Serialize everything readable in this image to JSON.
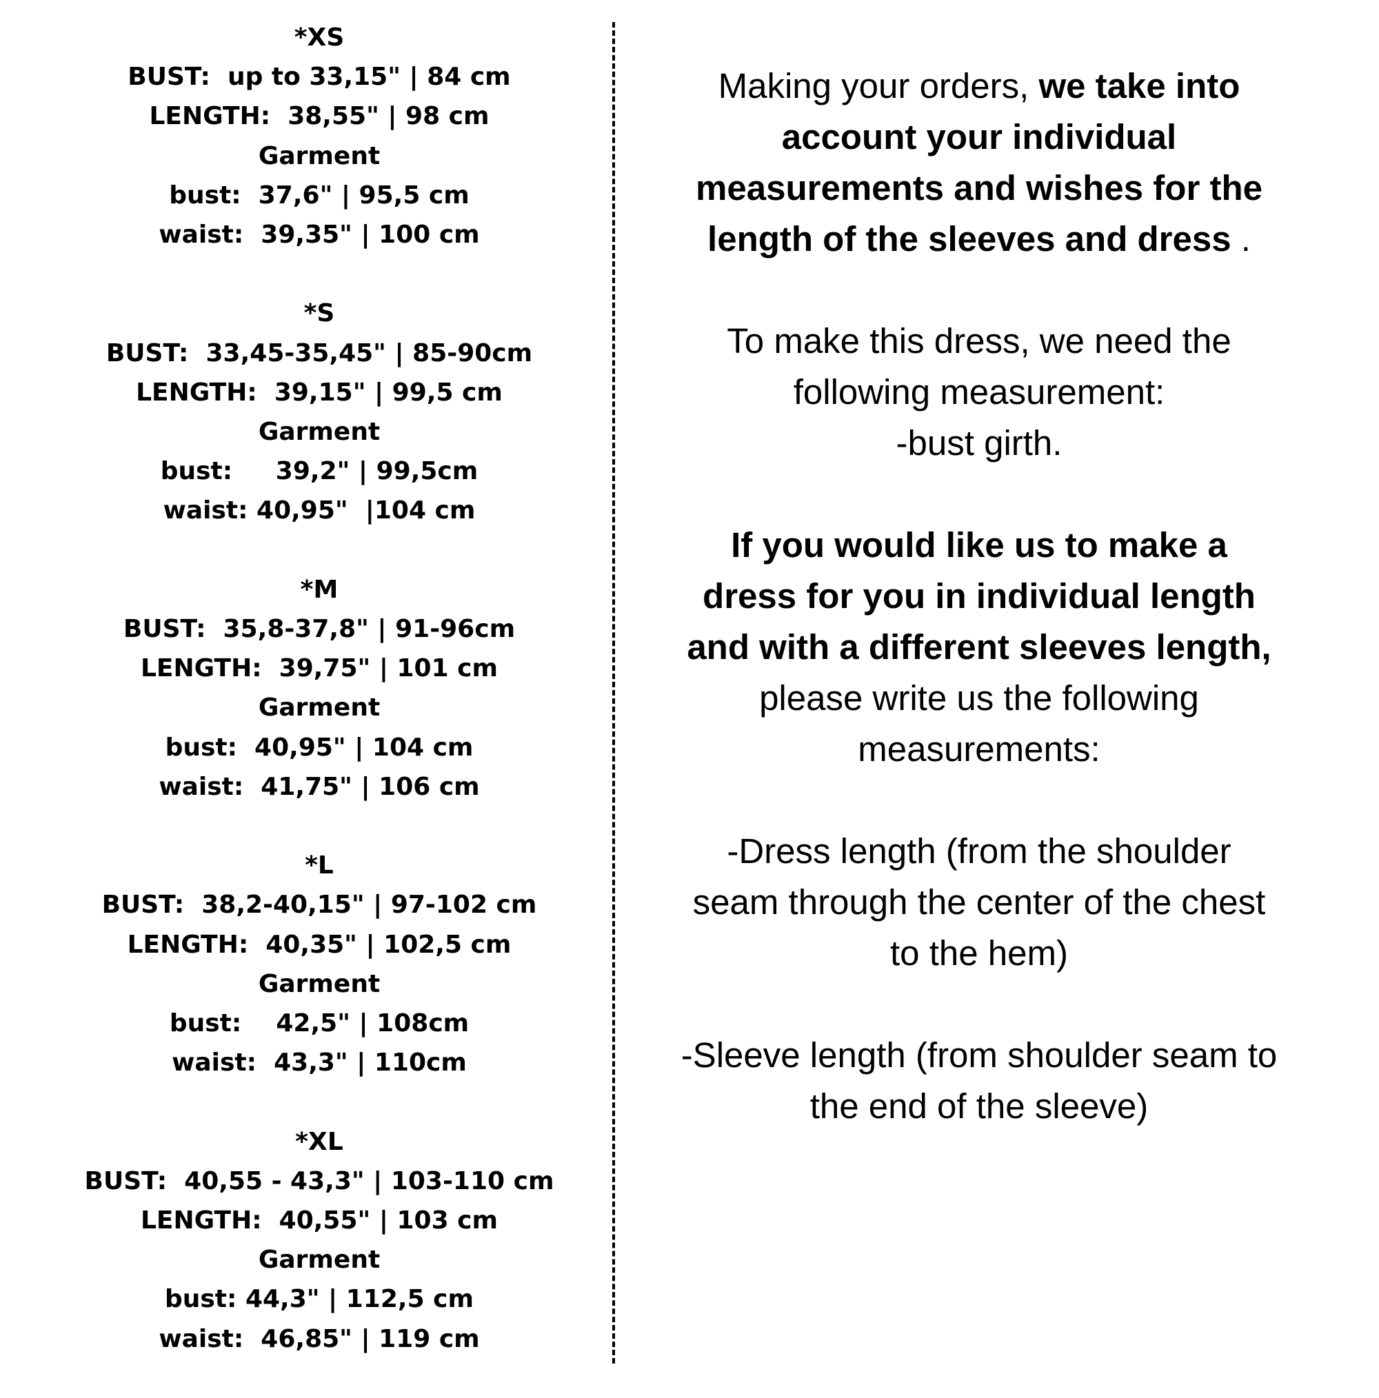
{
  "sizes": [
    {
      "label": "*XS",
      "bust": "BUST:  up to 33,15\" | 84 cm",
      "length": "LENGTH:  38,55\" | 98 cm",
      "garment": "Garment",
      "g_bust": "bust:  37,6\" | 95,5 cm",
      "g_waist": "waist:  39,35\" | 100 cm"
    },
    {
      "label": "*S",
      "bust": "BUST:  33,45-35,45\" | 85-90cm",
      "length": "LENGTH:  39,15\" | 99,5 cm",
      "garment": "Garment",
      "g_bust": "bust:     39,2\" | 99,5cm",
      "g_waist": "waist: 40,95\"  |104 cm"
    },
    {
      "label": "*M",
      "bust": "BUST:  35,8-37,8\" | 91-96cm",
      "length": "LENGTH:  39,75\" | 101 cm",
      "garment": "Garment",
      "g_bust": "bust:  40,95\" | 104 cm",
      "g_waist": "waist:  41,75\" | 106 cm"
    },
    {
      "label": "*L",
      "bust": "BUST:  38,2-40,15\" | 97-102 cm",
      "length": "LENGTH:  40,35\" | 102,5 cm",
      "garment": "Garment",
      "g_bust": "bust:    42,5\" | 108cm",
      "g_waist": "waist:  43,3\" | 110cm"
    },
    {
      "label": "*XL",
      "bust": "BUST:  40,55 - 43,3\" | 103-110 cm",
      "length": "LENGTH:  40,55\" | 103 cm",
      "garment": "Garment",
      "g_bust": "bust: 44,3\" | 112,5 cm",
      "g_waist": "waist:  46,85\" | 119 cm"
    }
  ],
  "info": {
    "p1": {
      "normal": "Making your orders, ",
      "bold1": "we take into",
      "bold2": "account your individual",
      "bold3": "measurements and wishes for the",
      "bold4": "length of the sleeves and dress",
      "end": " ."
    },
    "p2": {
      "l1": "To make this dress, we need the",
      "l2": "following measurement:",
      "l3": "-bust girth."
    },
    "p3": {
      "b1": "If you would like us to make a",
      "b2": "dress for you in individual length",
      "b3": "and with a different sleeves length,",
      "l4": "please write us the following",
      "l5": "measurements:"
    },
    "p4": {
      "l1": "-Dress length (from the shoulder",
      "l2": "seam through the center of the chest",
      "l3": "to the hem)"
    },
    "p5": {
      "l1": "-Sleeve length (from shoulder seam to",
      "l2": "the end of the sleeve)"
    }
  }
}
